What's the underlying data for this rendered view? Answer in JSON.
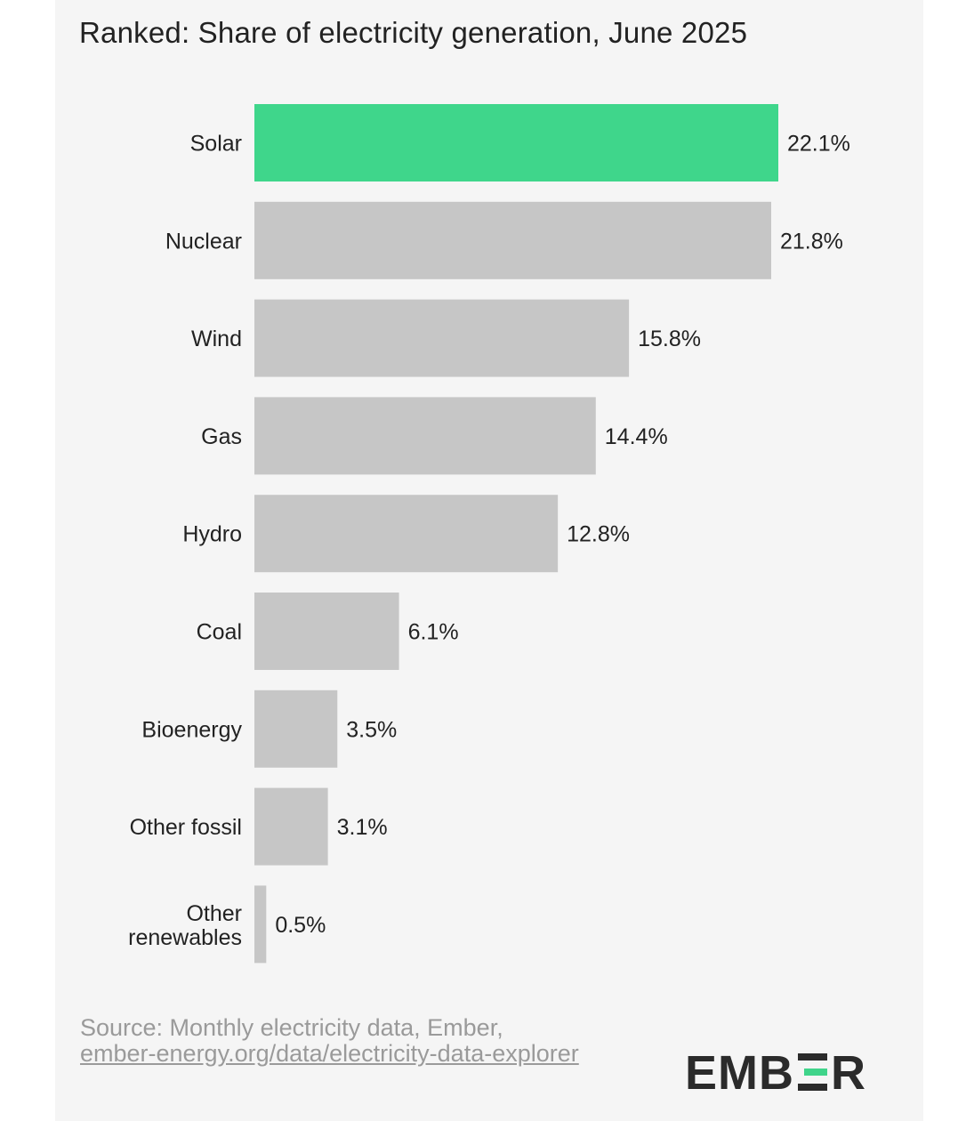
{
  "title": "Ranked: Share of electricity generation, June 2025",
  "source": {
    "prefix": "Source: Monthly electricity data, Ember,",
    "link_text": "ember-energy.org/data/electricity-data-explorer"
  },
  "logo": {
    "text_left": "EMB",
    "text_right": "R",
    "alt": "EMBER"
  },
  "colors": {
    "highlight": "#3fd68b",
    "bar": "#c6c6c6",
    "text": "#222222",
    "background": "#f5f5f5"
  },
  "chart_data": {
    "type": "bar",
    "orientation": "horizontal",
    "title": "Ranked: Share of electricity generation, June 2025",
    "categories": [
      "Solar",
      "Nuclear",
      "Wind",
      "Gas",
      "Hydro",
      "Coal",
      "Bioenergy",
      "Other fossil",
      "Other renewables"
    ],
    "values": [
      22.1,
      21.8,
      15.8,
      14.4,
      12.8,
      6.1,
      3.5,
      3.1,
      0.5
    ],
    "value_labels": [
      "22.1%",
      "21.8%",
      "15.8%",
      "14.4%",
      "12.8%",
      "6.1%",
      "3.5%",
      "3.1%",
      "0.5%"
    ],
    "unit": "%",
    "highlighted_category": "Solar",
    "xlim": [
      0,
      22.1
    ],
    "grid": false,
    "legend": "none"
  }
}
